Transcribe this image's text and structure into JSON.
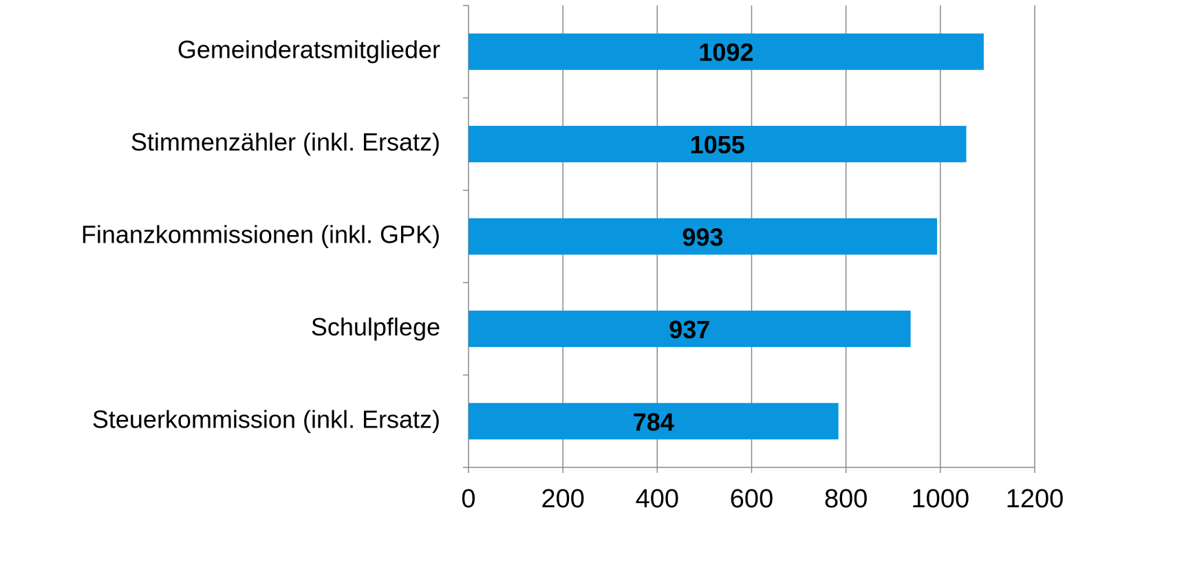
{
  "chart_data": {
    "type": "bar",
    "orientation": "horizontal",
    "categories": [
      "Gemeinderatsmitglieder",
      "Stimmenzähler (inkl. Ersatz)",
      "Finanzkommissionen (inkl. GPK)",
      "Schulpflege",
      "Steuerkommission (inkl. Ersatz)"
    ],
    "values": [
      1092,
      1055,
      993,
      937,
      784
    ],
    "color": "#0996de",
    "xlim": [
      0,
      1200
    ],
    "xticks": [
      0,
      200,
      400,
      600,
      800,
      1000,
      1200
    ],
    "grid": true
  }
}
